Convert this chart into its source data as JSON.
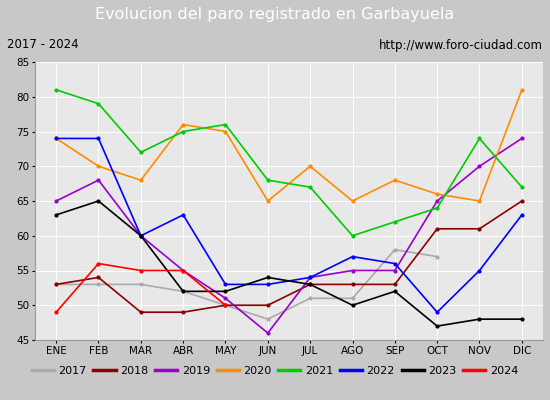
{
  "title": "Evolucion del paro registrado en Garbayuela",
  "subtitle_left": "2017 - 2024",
  "subtitle_right": "http://www.foro-ciudad.com",
  "months": [
    "ENE",
    "FEB",
    "MAR",
    "ABR",
    "MAY",
    "JUN",
    "JUL",
    "AGO",
    "SEP",
    "OCT",
    "NOV",
    "DIC"
  ],
  "ylim": [
    45,
    85
  ],
  "yticks": [
    45,
    50,
    55,
    60,
    65,
    70,
    75,
    80,
    85
  ],
  "series": {
    "2017": {
      "color": "#aaaaaa",
      "values": [
        53,
        53,
        53,
        52,
        50,
        48,
        51,
        51,
        58,
        57,
        null,
        null
      ]
    },
    "2018": {
      "color": "#8b0000",
      "values": [
        53,
        54,
        49,
        49,
        50,
        50,
        53,
        53,
        53,
        61,
        61,
        65
      ]
    },
    "2019": {
      "color": "#9900cc",
      "values": [
        65,
        68,
        60,
        55,
        51,
        46,
        54,
        55,
        55,
        65,
        70,
        74
      ]
    },
    "2020": {
      "color": "#ff8c00",
      "values": [
        74,
        70,
        68,
        76,
        75,
        65,
        70,
        65,
        68,
        66,
        65,
        81
      ]
    },
    "2021": {
      "color": "#00cc00",
      "values": [
        81,
        79,
        72,
        75,
        76,
        68,
        67,
        60,
        62,
        64,
        74,
        67
      ]
    },
    "2022": {
      "color": "#0000ff",
      "values": [
        74,
        74,
        60,
        63,
        53,
        53,
        54,
        57,
        56,
        49,
        55,
        63
      ]
    },
    "2023": {
      "color": "#000000",
      "values": [
        63,
        65,
        60,
        52,
        52,
        54,
        53,
        50,
        52,
        47,
        48,
        48
      ]
    },
    "2024": {
      "color": "#ff0000",
      "values": [
        49,
        56,
        55,
        55,
        50,
        null,
        null,
        null,
        null,
        null,
        null,
        null
      ]
    }
  },
  "fig_bg": "#c8c8c8",
  "plot_bg": "#e8e8e8",
  "title_bg": "#5080d0",
  "title_fg": "#ffffff",
  "sub_bg": "#f8f8f8",
  "sub_fg": "#000000",
  "legend_bg": "#f0f0f0",
  "title_fontsize": 11.5,
  "subtitle_fontsize": 8.5,
  "tick_fontsize": 7.5,
  "legend_fontsize": 8
}
